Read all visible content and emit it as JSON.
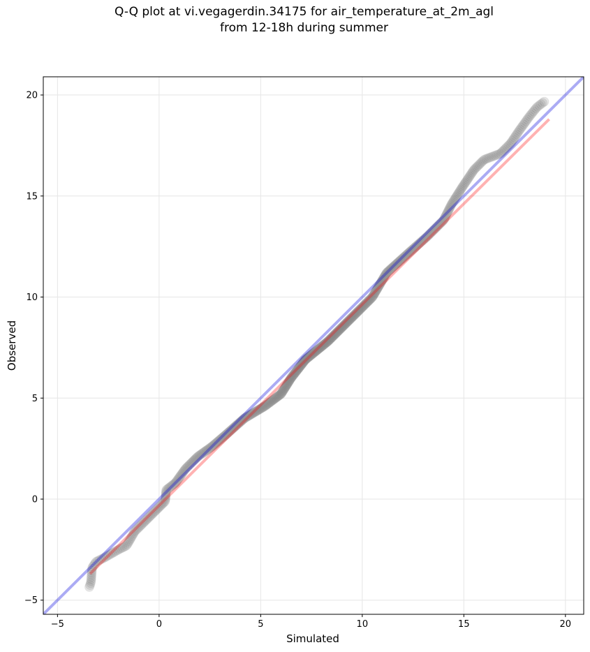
{
  "chart_data": {
    "type": "scatter",
    "title_line1": "Q-Q plot at vi.vegagerdin.34175 for air_temperature_at_2m_agl",
    "title_line2": "from 12-18h during summer",
    "xlabel": "Simulated",
    "ylabel": "Observed",
    "xlim": [
      -5.7,
      20.9
    ],
    "ylim": [
      -5.7,
      20.9
    ],
    "xticks": [
      "-5",
      "0",
      "5",
      "10",
      "15",
      "20"
    ],
    "yticks": [
      "-5",
      "0",
      "5",
      "10",
      "15",
      "20"
    ],
    "grid": true,
    "point_color": "#808080",
    "identity_line": {
      "color": "#0000dd",
      "from": [
        -5.7,
        -5.7
      ],
      "to": [
        20.9,
        20.9
      ]
    },
    "fit_line": {
      "color": "#ff0000",
      "from": [
        -3.4,
        -3.7
      ],
      "to": [
        19.2,
        18.8
      ]
    },
    "points_knots": [
      [
        -3.45,
        -4.4
      ],
      [
        -3.35,
        -4.1
      ],
      [
        -3.3,
        -3.4
      ],
      [
        -3.1,
        -3.1
      ],
      [
        -2.7,
        -2.9
      ],
      [
        -2.0,
        -2.5
      ],
      [
        -1.6,
        -2.3
      ],
      [
        -1.2,
        -1.6
      ],
      [
        -0.6,
        -1.0
      ],
      [
        -0.1,
        -0.5
      ],
      [
        0.3,
        -0.1
      ],
      [
        0.35,
        0.45
      ],
      [
        0.8,
        0.8
      ],
      [
        1.3,
        1.5
      ],
      [
        1.9,
        2.1
      ],
      [
        2.6,
        2.6
      ],
      [
        3.3,
        3.2
      ],
      [
        4.2,
        4.0
      ],
      [
        5.2,
        4.6
      ],
      [
        6.0,
        5.2
      ],
      [
        6.5,
        6.0
      ],
      [
        7.2,
        6.9
      ],
      [
        8.3,
        7.8
      ],
      [
        9.3,
        8.8
      ],
      [
        10.5,
        10.0
      ],
      [
        11.2,
        11.2
      ],
      [
        12.3,
        12.2
      ],
      [
        13.2,
        13.0
      ],
      [
        14.0,
        13.8
      ],
      [
        14.4,
        14.6
      ],
      [
        14.9,
        15.4
      ],
      [
        15.5,
        16.3
      ],
      [
        16.0,
        16.8
      ],
      [
        16.8,
        17.1
      ],
      [
        17.3,
        17.6
      ],
      [
        17.7,
        18.2
      ],
      [
        18.2,
        18.9
      ],
      [
        18.6,
        19.4
      ],
      [
        19.0,
        19.7
      ]
    ],
    "n_points": 500
  }
}
